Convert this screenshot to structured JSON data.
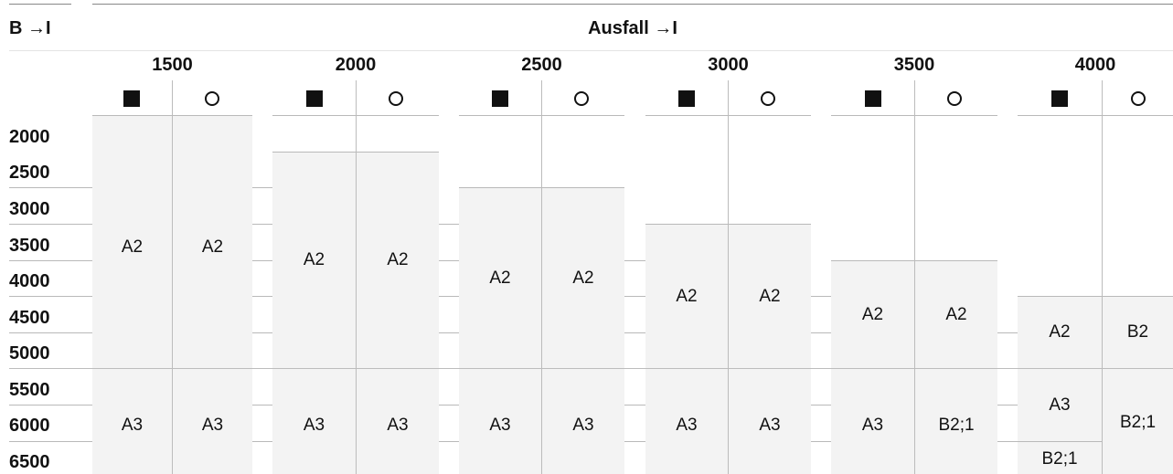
{
  "corner_label": "B →I",
  "header_title": "Ausfall →I",
  "columns": [
    {
      "label": "1500"
    },
    {
      "label": "2000"
    },
    {
      "label": "2500"
    },
    {
      "label": "3000"
    },
    {
      "label": "3500"
    },
    {
      "label": "4000"
    }
  ],
  "symbols": {
    "filled": "square-filled-icon",
    "open": "circle-open-icon"
  },
  "rows": [
    "2000",
    "2500",
    "3000",
    "3500",
    "4000",
    "4500",
    "5000",
    "5500",
    "6000",
    "6500"
  ],
  "cells": {
    "c1500_sq_top": "A2",
    "c1500_ci_top": "A2",
    "c2000_sq_top": "A2",
    "c2000_ci_top": "A2",
    "c2500_sq_top": "A2",
    "c2500_ci_top": "A2",
    "c3000_sq_top": "A2",
    "c3000_ci_top": "A2",
    "c3500_sq_top": "A2",
    "c3500_ci_top": "A2",
    "c4000_sq_top": "A2",
    "c4000_ci_top": "B2",
    "c1500_sq_bot": "A3",
    "c1500_ci_bot": "A3",
    "c2000_sq_bot": "A3",
    "c2000_ci_bot": "A3",
    "c2500_sq_bot": "A3",
    "c2500_ci_bot": "A3",
    "c3000_sq_bot": "A3",
    "c3000_ci_bot": "A3",
    "c3500_sq_bot": "A3",
    "c3500_ci_bot": "B2;1",
    "c4000_sq_bot": "A3",
    "c4000_sq_last": "B2;1",
    "c4000_ci_bot": "B2;1"
  }
}
